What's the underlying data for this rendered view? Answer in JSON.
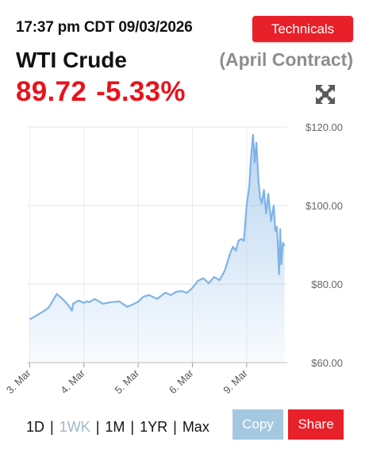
{
  "header": {
    "timestamp": "17:37 pm CDT 09/03/2026",
    "technicals_label": "Technicals",
    "instrument": "WTI Crude",
    "contract": "(April Contract)",
    "price": "89.72",
    "change_pct": "-5.33%"
  },
  "colors": {
    "accent_red": "#e8202a",
    "price_red": "#e8131b",
    "line_blue": "#7fb3e6",
    "copy_blue": "#a4c8df"
  },
  "icons": {
    "expand": "expand-arrows-icon"
  },
  "chart_data": {
    "type": "area",
    "categories": [
      "3. Mar",
      "4. Mar",
      "5. Mar",
      "6. Mar",
      "9. Mar"
    ],
    "ylim": [
      60,
      120
    ],
    "y_ticks": [
      "$60.00",
      "$80.00",
      "$100.00",
      "$120.00"
    ],
    "y_tick_values": [
      60,
      80,
      100,
      120
    ],
    "x_ticks": [
      "3. Mar",
      "4. Mar",
      "5. Mar",
      "6. Mar",
      "9. Mar"
    ],
    "grid": true,
    "x": [
      0.0,
      0.1,
      0.2,
      0.25,
      0.35,
      0.5,
      0.62,
      0.72,
      0.78,
      0.8,
      0.9,
      1.0,
      1.05,
      1.1,
      1.2,
      1.35,
      1.5,
      1.65,
      1.8,
      1.9,
      2.0,
      2.1,
      2.2,
      2.35,
      2.5,
      2.6,
      2.7,
      2.8,
      2.9,
      3.0,
      3.1,
      3.2,
      3.3,
      3.4,
      3.5,
      3.6,
      3.7,
      3.75,
      3.8,
      3.85,
      3.9,
      3.95,
      4.0,
      4.05,
      4.08,
      4.12,
      4.15,
      4.18,
      4.22,
      4.25,
      4.28,
      4.32,
      4.36,
      4.4,
      4.45,
      4.5,
      4.53,
      4.56,
      4.6,
      4.62,
      4.64,
      4.67,
      4.7
    ],
    "series": [
      {
        "values": [
          71.0,
          71.8,
          72.6,
          73.0,
          74.0,
          77.5,
          76.0,
          74.5,
          73.2,
          75.0,
          75.8,
          75.2,
          75.6,
          75.4,
          76.2,
          75.0,
          75.4,
          75.6,
          74.2,
          74.8,
          75.5,
          76.8,
          77.2,
          76.2,
          77.8,
          77.2,
          78.0,
          78.2,
          77.8,
          79.0,
          80.8,
          81.5,
          80.2,
          81.8,
          81.0,
          83.5,
          88.0,
          89.5,
          88.5,
          91.0,
          91.5,
          91.0,
          100.0,
          105.0,
          112.0,
          118.0,
          111.0,
          116.0,
          106.0,
          102.0,
          100.5,
          104.0,
          98.0,
          103.0,
          96.0,
          100.0,
          93.5,
          94.5,
          82.5,
          94.0,
          85.0,
          90.5,
          89.72
        ]
      }
    ]
  },
  "period_selector": {
    "options": [
      "1D",
      "1WK",
      "1M",
      "1YR",
      "Max"
    ],
    "active": "1WK",
    "separator": "|"
  },
  "actions": {
    "copy_label": "Copy",
    "share_label": "Share"
  }
}
